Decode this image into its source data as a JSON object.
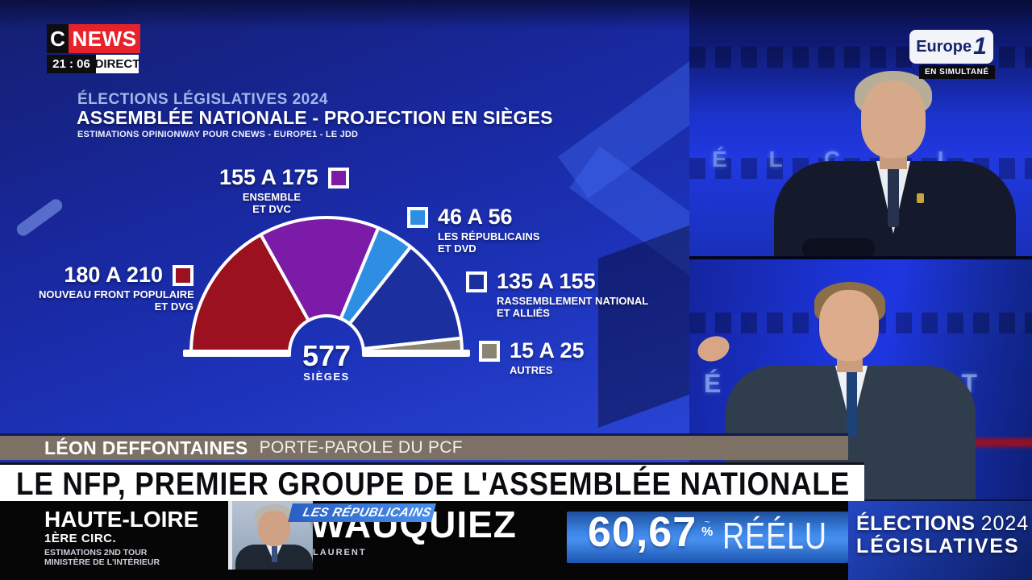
{
  "colors": {
    "cnews_red": "#e8222a",
    "studio_blue": "#1c2f9e",
    "speaker_band_taupe": "#7c7164",
    "score_band_blue": "#3c85e6",
    "headline_bg": "#ffffff",
    "headline_text": "#0c0c10"
  },
  "channel": {
    "letter": "C",
    "name": "NEWS",
    "time": "21 : 06",
    "live_label": "DIRECT"
  },
  "simulcast": {
    "brand": "Europe",
    "brand_number": "1",
    "label": "EN SIMULTANÉ"
  },
  "chart": {
    "kicker": "ÉLECTIONS LÉGISLATIVES 2024",
    "title": "ASSEMBLÉE NATIONALE - PROJECTION EN SIÈGES",
    "source": "ESTIMATIONS OPINIONWAY POUR CNEWS - EUROPE1 - LE JDD",
    "total_value": "577",
    "total_label": "SIÈGES"
  },
  "chart_data": {
    "type": "hemicycle",
    "title": "ASSEMBLÉE NATIONALE - PROJECTION EN SIÈGES",
    "subtitle": "ESTIMATIONS OPINIONWAY POUR CNEWS - EUROPE1 - LE JDD",
    "total_seats": 577,
    "unit": "sièges",
    "segments": [
      {
        "name": "NOUVEAU FRONT POPULAIRE ET DVG",
        "range": "180 A 210",
        "seats_min": 180,
        "seats_max": 210,
        "seats_mid": 195,
        "color": "#9b111f",
        "label_line1": "NOUVEAU FRONT POPULAIRE",
        "label_line2": "ET DVG"
      },
      {
        "name": "ENSEMBLE ET DVC",
        "range": "155 A 175",
        "seats_min": 155,
        "seats_max": 175,
        "seats_mid": 165,
        "color": "#7b1ba8",
        "label_line1": "ENSEMBLE",
        "label_line2": "ET DVC"
      },
      {
        "name": "LES RÉPUBLICAINS ET DVD",
        "range": "46 A 56",
        "seats_min": 46,
        "seats_max": 56,
        "seats_mid": 51,
        "color": "#2e8ee4",
        "label_line1": "LES RÉPUBLICAINS",
        "label_line2": "ET DVD"
      },
      {
        "name": "RASSEMBLEMENT NATIONAL ET ALLIÉS",
        "range": "135 A 155",
        "seats_min": 135,
        "seats_max": 155,
        "seats_mid": 145,
        "color": "#1c2f9e",
        "label_line1": "RASSEMBLEMENT NATIONAL",
        "label_line2": "ET ALLIÉS"
      },
      {
        "name": "AUTRES",
        "range": "15 A 25",
        "seats_min": 15,
        "seats_max": 25,
        "seats_mid": 20,
        "color": "#8a8471",
        "label_line1": "AUTRES",
        "label_line2": ""
      }
    ]
  },
  "speaker": {
    "name": "LÉON DEFFONTAINES",
    "role": "PORTE-PAROLE DU PCF"
  },
  "headline": "LE NFP, PREMIER GROUPE DE L'ASSEMBLÉE NATIONALE",
  "ticker": {
    "location": "HAUTE-LOIRE",
    "district": "1ÈRE CIRC.",
    "source_line1": "ESTIMATIONS 2ND TOUR",
    "source_line2": "MINISTÈRE DE L'INTÉRIEUR",
    "party": "LES RÉPUBLICAINS",
    "candidate_last_name": "WAUQUIEZ",
    "candidate_first_name": "LAURENT",
    "score": "60,67",
    "score_decoration": "~",
    "score_unit": "%",
    "status": "RÉÉLU"
  },
  "program": {
    "title_bold": "ÉLECTIONS",
    "title_year": "2024",
    "title_line2": "LÉGISLATIVES"
  },
  "feeds": {
    "feed1_backdrop": "É L C T I",
    "feed2_backdrop": "É G I A T"
  }
}
